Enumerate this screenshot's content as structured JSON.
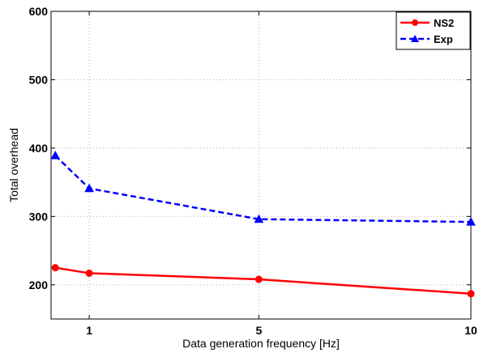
{
  "chart_data": {
    "type": "line",
    "title": "",
    "xlabel": "Data generation frequency [Hz]",
    "ylabel": "Total overhead",
    "xlim": [
      0.1,
      10
    ],
    "ylim": [
      150,
      600
    ],
    "xticks": [
      1,
      5,
      10
    ],
    "xtick_labels": [
      "1",
      "5",
      "10"
    ],
    "yticks": [
      200,
      300,
      400,
      500,
      600
    ],
    "ytick_labels": [
      "200",
      "300",
      "400",
      "500",
      "600"
    ],
    "grid": true,
    "legend_position": "top-right",
    "series": [
      {
        "name": "NS2",
        "color": "#ff0000",
        "line_style": "solid",
        "marker": "circle",
        "x": [
          0.2,
          1,
          5,
          10
        ],
        "y": [
          225,
          217,
          208,
          187
        ]
      },
      {
        "name": "Exp",
        "color": "#0000ff",
        "line_style": "dashed",
        "marker": "triangle",
        "x": [
          0.2,
          1,
          5,
          10
        ],
        "y": [
          389,
          341,
          296,
          292
        ]
      }
    ]
  }
}
